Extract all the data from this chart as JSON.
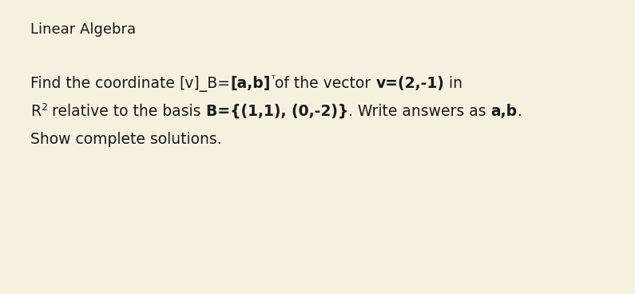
{
  "background_color": "#f5f0e0",
  "text_color": "#1a1a1a",
  "title": "Linear Algebra",
  "title_fs": 13.0,
  "body_fs": 13.5,
  "line1": [
    {
      "t": "Find the coordinate ",
      "bold": false
    },
    {
      "t": "[v]_B=",
      "bold": false
    },
    {
      "t": "[a,b]",
      "bold": true
    },
    {
      "t": "ᵀ",
      "bold": false,
      "sup": true
    },
    {
      "t": "of the vector ",
      "bold": false
    },
    {
      "t": "v=(2,-1)",
      "bold": true
    },
    {
      "t": " in",
      "bold": false
    }
  ],
  "line2": [
    {
      "t": "R",
      "bold": false
    },
    {
      "t": "2",
      "bold": false,
      "sup": true
    },
    {
      "t": " relative to the basis ",
      "bold": false
    },
    {
      "t": "B={(1,1), (0,-2)}",
      "bold": true
    },
    {
      "t": ". Write answers as ",
      "bold": false
    },
    {
      "t": "a,b",
      "bold": true
    },
    {
      "t": ".",
      "bold": false
    }
  ],
  "line3": "Show complete solutions."
}
